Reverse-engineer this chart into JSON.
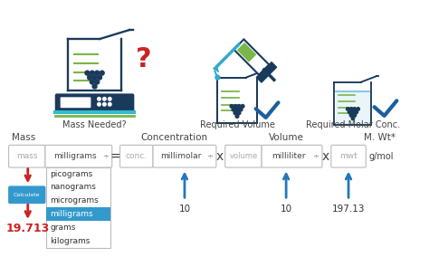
{
  "bg_color": "#ffffff",
  "text_dark": "#444444",
  "text_gray": "#aaaaaa",
  "text_red": "#cc2222",
  "text_blue": "#1a5f9e",
  "arrow_blue": "#2277bb",
  "arrow_red": "#cc2222",
  "box_selected_bg": "#3399cc",
  "box_border": "#bbbbbb",
  "beaker_color": "#1a3a5c",
  "green_line": "#7ab648",
  "cyan_line": "#33bbcc",
  "check_color": "#1a5f9e",
  "question_color": "#cc2222",
  "dropdown_items": [
    "picograms",
    "nanograms",
    "micrograms",
    "milligrams",
    "grams",
    "kilograms"
  ],
  "selected_index": 3,
  "conc_value": "10",
  "volume_value": "10",
  "mwt_value": "197.13",
  "result_value": "19.713",
  "section_labels": [
    "Mass",
    "Concentration",
    "Volume",
    "M. Wt*"
  ],
  "icon_labels": [
    "Mass Needed?",
    "Required Volume",
    "Required Molar Conc."
  ]
}
